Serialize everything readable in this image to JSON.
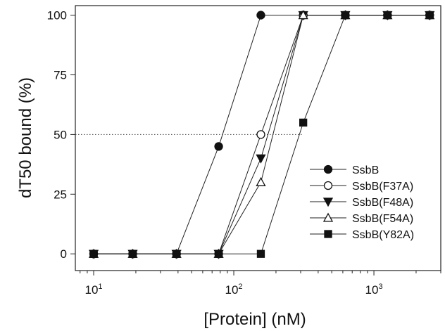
{
  "chart_data": {
    "type": "line",
    "xlabel": "[Protein] (nM)",
    "ylabel": "dT50 bound (%)",
    "x_scale": "log",
    "xlim": [
      7.4,
      3000
    ],
    "ylim": [
      -7,
      104
    ],
    "x_ticks": [
      {
        "value": 10,
        "base": "10",
        "exp": "1"
      },
      {
        "value": 100,
        "base": "10",
        "exp": "2"
      },
      {
        "value": 1000,
        "base": "10",
        "exp": "3"
      }
    ],
    "y_ticks": [
      0,
      25,
      50,
      75,
      100
    ],
    "grid": false,
    "legend": "lower-right",
    "reference_line": {
      "y": 50,
      "x_end": 313,
      "style": "dotted"
    },
    "series": [
      {
        "name": "SsbB",
        "marker": "filled-circle",
        "x": [
          10,
          19,
          39,
          78,
          156,
          313,
          625,
          1250,
          2500
        ],
        "y": [
          0,
          0,
          0,
          45,
          100,
          100,
          100,
          100,
          100
        ]
      },
      {
        "name": "SsbB(F37A)",
        "marker": "open-circle",
        "x": [
          10,
          19,
          39,
          78,
          156,
          313,
          625,
          1250,
          2500
        ],
        "y": [
          0,
          0,
          0,
          0,
          50,
          100,
          100,
          100,
          100
        ]
      },
      {
        "name": "SsbB(F48A)",
        "marker": "filled-triangle-down",
        "x": [
          10,
          19,
          39,
          78,
          156,
          313,
          625,
          1250,
          2500
        ],
        "y": [
          0,
          0,
          0,
          0,
          40,
          100,
          100,
          100,
          100
        ]
      },
      {
        "name": "SsbB(F54A)",
        "marker": "open-triangle-up",
        "x": [
          10,
          19,
          39,
          78,
          156,
          313,
          625,
          1250,
          2500
        ],
        "y": [
          0,
          0,
          0,
          0,
          30,
          100,
          100,
          100,
          100
        ]
      },
      {
        "name": "SsbB(Y82A)",
        "marker": "filled-square",
        "x": [
          10,
          19,
          39,
          78,
          156,
          313,
          625,
          1250,
          2500
        ],
        "y": [
          0,
          0,
          0,
          0,
          0,
          55,
          100,
          100,
          100
        ]
      }
    ]
  }
}
